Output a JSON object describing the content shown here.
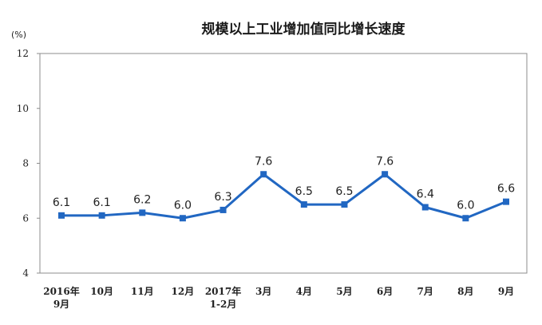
{
  "chart_data": {
    "type": "line",
    "title": "规模以上工业增加值同比增长速度",
    "ylabel": "(%)",
    "xlabel": "",
    "ylim": [
      4,
      12
    ],
    "yticks": [
      4,
      6,
      8,
      10,
      12
    ],
    "grid": false,
    "categories": [
      [
        "2016年",
        "9月"
      ],
      [
        "10月"
      ],
      [
        "11月"
      ],
      [
        "12月"
      ],
      [
        "2017年",
        "1-2月"
      ],
      [
        "3月"
      ],
      [
        "4月"
      ],
      [
        "5月"
      ],
      [
        "6月"
      ],
      [
        "7月"
      ],
      [
        "8月"
      ],
      [
        "9月"
      ]
    ],
    "values": [
      6.1,
      6.1,
      6.2,
      6.0,
      6.3,
      7.6,
      6.5,
      6.5,
      7.6,
      6.4,
      6.0,
      6.6
    ],
    "data_labels": [
      "6.1",
      "6.1",
      "6.2",
      "6.0",
      "6.3",
      "7.6",
      "6.5",
      "6.5",
      "7.6",
      "6.4",
      "6.0",
      "6.6"
    ],
    "line_color": "#2167c2",
    "marker": "square"
  }
}
